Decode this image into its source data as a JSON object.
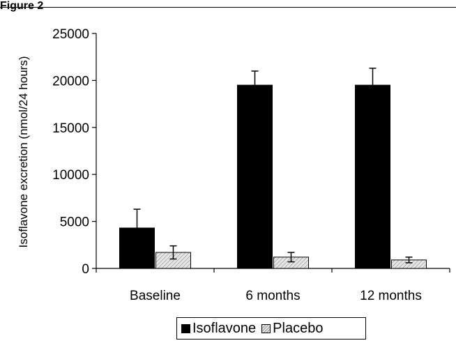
{
  "figure": {
    "label": "Figure 2"
  },
  "chart_data": {
    "type": "bar",
    "categories": [
      "Baseline",
      "6 months",
      "12 months"
    ],
    "series": [
      {
        "name": "Isoflavone",
        "values": [
          4300,
          19500,
          19500
        ],
        "error": [
          2000,
          1500,
          1800
        ],
        "color": "#000000"
      },
      {
        "name": "Placebo",
        "values": [
          1700,
          1200,
          900
        ],
        "error": [
          700,
          500,
          300
        ],
        "color": "#d9d9d9"
      }
    ],
    "ylabel": "Isoflavone excretion (nmol/24 hours)",
    "xlabel": "",
    "ylim": [
      0,
      25000
    ],
    "yticks": [
      0,
      5000,
      10000,
      15000,
      20000,
      25000
    ],
    "grid": false,
    "legend_position": "bottom"
  }
}
